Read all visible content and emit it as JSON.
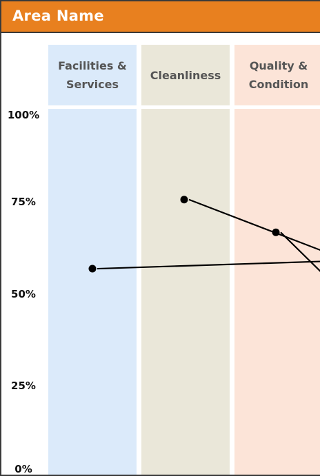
{
  "area": {
    "title": "Area Name"
  },
  "colors": {
    "header": "#e8801f",
    "facilities": "#dbeafa",
    "cleanliness": "#eae7d9",
    "quality": "#fce4d8",
    "line": "#000000"
  },
  "chart_data": {
    "type": "line",
    "title": "",
    "xlabel": "",
    "ylabel": "",
    "categories": [
      "Facilities & Services",
      "Cleanliness",
      "Quality & Condition"
    ],
    "yticks": [
      "100%",
      "75%",
      "50%",
      "25%",
      "0%"
    ],
    "ylim": [
      0,
      100
    ],
    "grid": false,
    "series": [
      {
        "values": [
          57,
          76,
          67
        ]
      }
    ],
    "offscreen_endpoints": [
      59,
      62,
      56
    ]
  }
}
